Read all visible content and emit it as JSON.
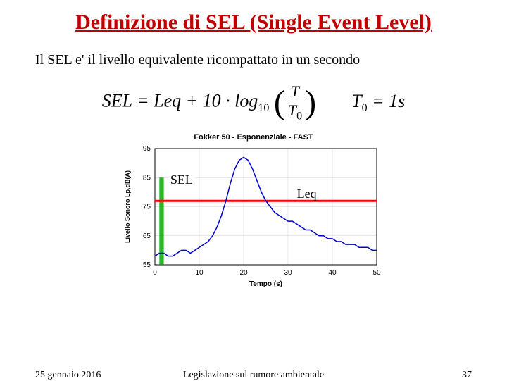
{
  "title": "Definizione di SEL (Single Event Level)",
  "subtitle": "Il SEL e' il livello equivalente ricompattato in un secondo",
  "formula1_left": "SEL",
  "formula1_eq": " = Leq + 10 · log",
  "formula1_sub": "10",
  "formula1_num": "T",
  "formula1_den": "T",
  "formula1_den_sub": "0",
  "formula2": "T",
  "formula2_sub": "0",
  "formula2_rest": " = 1s",
  "chart": {
    "title": "Fokker 50 - Esponenziale - FAST",
    "xlabel": "Tempo (s)",
    "ylabel": "Livello Sonoro Lp,dB(A)",
    "xlim": [
      0,
      50
    ],
    "ylim": [
      55,
      95
    ],
    "xticks": [
      0,
      10,
      20,
      30,
      40,
      50
    ],
    "yticks": [
      55,
      65,
      75,
      85,
      95
    ],
    "line_color": "#0000cc",
    "grid_color": "#d0d0d0",
    "sel_bar_color": "#00aa00",
    "leq_line_color": "#ff0000",
    "sel_bar_x": [
      1,
      2
    ],
    "sel_bar_height": 85,
    "leq_y": 77,
    "data_x": [
      0,
      1,
      2,
      3,
      4,
      5,
      6,
      7,
      8,
      9,
      10,
      11,
      12,
      13,
      14,
      15,
      16,
      17,
      18,
      19,
      20,
      21,
      22,
      23,
      24,
      25,
      26,
      27,
      28,
      29,
      30,
      31,
      32,
      33,
      34,
      35,
      36,
      37,
      38,
      39,
      40,
      41,
      42,
      43,
      44,
      45,
      46,
      47,
      48,
      49,
      50
    ],
    "data_y": [
      58,
      59,
      59,
      58,
      58,
      59,
      60,
      60,
      59,
      60,
      61,
      62,
      63,
      65,
      68,
      72,
      77,
      83,
      88,
      91,
      92,
      91,
      88,
      84,
      80,
      77,
      75,
      73,
      72,
      71,
      70,
      70,
      69,
      68,
      67,
      67,
      66,
      65,
      65,
      64,
      64,
      63,
      63,
      62,
      62,
      62,
      61,
      61,
      61,
      60,
      60
    ]
  },
  "sel_annotation": "SEL",
  "leq_annotation": "Leq",
  "footer_date": "25 gennaio 2016",
  "footer_center": "Legislazione sul rumore ambientale",
  "footer_page": "37"
}
